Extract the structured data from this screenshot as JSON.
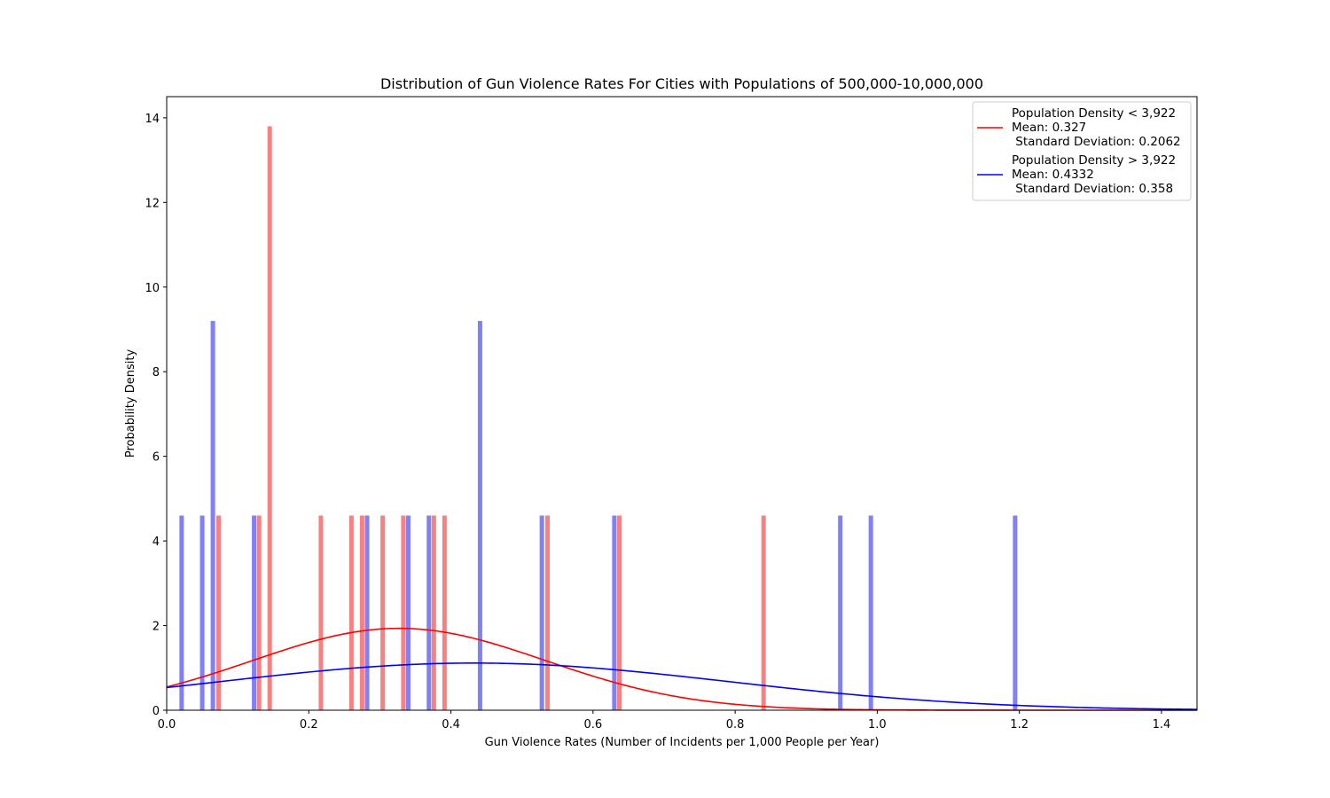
{
  "chart_data": {
    "type": "bar",
    "title": "Distribution of Gun Violence Rates For Cities with Populations of 500,000-10,000,000",
    "xlabel": "Gun Violence Rates (Number of Incidents per 1,000 People per Year)",
    "ylabel": "Probability Density",
    "xlim": [
      0.0,
      1.45
    ],
    "ylim": [
      0,
      14.5
    ],
    "grid": false,
    "legend_position": "top-right",
    "x_ticks": [
      {
        "value": 0.0,
        "label": "0.0"
      },
      {
        "value": 0.2,
        "label": "0.2"
      },
      {
        "value": 0.4,
        "label": "0.4"
      },
      {
        "value": 0.6,
        "label": "0.6"
      },
      {
        "value": 0.8,
        "label": "0.8"
      },
      {
        "value": 1.0,
        "label": "1.0"
      },
      {
        "value": 1.2,
        "label": "1.2"
      },
      {
        "value": 1.4,
        "label": "1.4"
      }
    ],
    "y_ticks": [
      {
        "value": 0,
        "label": "0"
      },
      {
        "value": 2,
        "label": "2"
      },
      {
        "value": 4,
        "label": "4"
      },
      {
        "value": 6,
        "label": "6"
      },
      {
        "value": 8,
        "label": "8"
      },
      {
        "value": 10,
        "label": "10"
      },
      {
        "value": 12,
        "label": "12"
      },
      {
        "value": 14,
        "label": "14"
      }
    ],
    "series": [
      {
        "name": "Population Density < 3,922",
        "legend_lines": [
          "Population Density < 3,922",
          "Mean: 0.327",
          " Standard Deviation: 0.2062"
        ],
        "mean": 0.327,
        "std": 0.2062,
        "bar_color": "#f88080",
        "line_color": "#ff0000",
        "bins": [
          {
            "x": 0.073,
            "density": 4.6
          },
          {
            "x": 0.13,
            "density": 4.6
          },
          {
            "x": 0.145,
            "density": 13.8
          },
          {
            "x": 0.217,
            "density": 4.6
          },
          {
            "x": 0.26,
            "density": 4.6
          },
          {
            "x": 0.275,
            "density": 4.6
          },
          {
            "x": 0.304,
            "density": 4.6
          },
          {
            "x": 0.333,
            "density": 4.6
          },
          {
            "x": 0.376,
            "density": 4.6
          },
          {
            "x": 0.391,
            "density": 4.6
          },
          {
            "x": 0.536,
            "density": 4.6
          },
          {
            "x": 0.637,
            "density": 4.6
          },
          {
            "x": 0.84,
            "density": 4.6
          }
        ]
      },
      {
        "name": "Population Density > 3,922",
        "legend_lines": [
          "Population Density > 3,922",
          "Mean: 0.4332",
          " Standard Deviation: 0.358"
        ],
        "mean": 0.4332,
        "std": 0.358,
        "bar_color": "#8080f8",
        "line_color": "#0000ff",
        "bins": [
          {
            "x": 0.021,
            "density": 4.6
          },
          {
            "x": 0.05,
            "density": 4.6
          },
          {
            "x": 0.065,
            "density": 9.2
          },
          {
            "x": 0.123,
            "density": 4.6
          },
          {
            "x": 0.282,
            "density": 4.6
          },
          {
            "x": 0.34,
            "density": 4.6
          },
          {
            "x": 0.369,
            "density": 4.6
          },
          {
            "x": 0.441,
            "density": 9.2
          },
          {
            "x": 0.528,
            "density": 4.6
          },
          {
            "x": 0.63,
            "density": 4.6
          },
          {
            "x": 0.948,
            "density": 4.6
          },
          {
            "x": 0.991,
            "density": 4.6
          },
          {
            "x": 1.194,
            "density": 4.6
          }
        ]
      }
    ]
  }
}
